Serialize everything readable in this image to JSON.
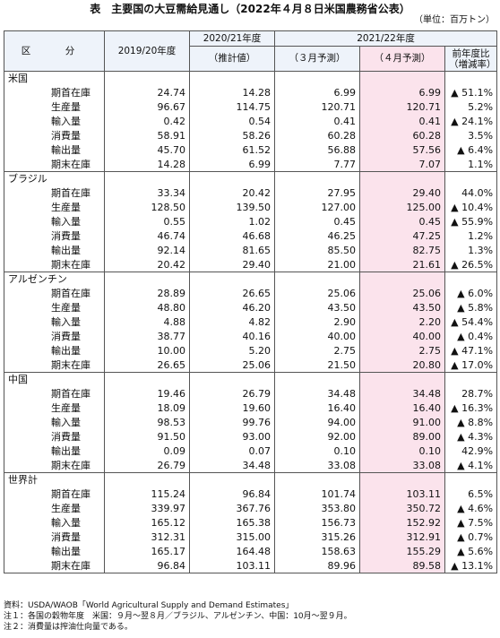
{
  "title": "表　主要国の大豆需給見通し（2022年４月８日米国農務省公表）",
  "unit": "（単位：百万トン）",
  "header": {
    "region_label": "区　分",
    "col_2019": "2019/20年度",
    "col_2020": "2020/21年度",
    "col_2020_sub": "（推計値）",
    "col_2021": "2021/22年度",
    "col_2021_mar": "（３月予測）",
    "col_2021_apr": "（４月予測）",
    "col_yoy": "前年度比",
    "col_yoy_sub": "（増減率）"
  },
  "groups": [
    {
      "name": "米国",
      "rows": [
        {
          "item": "期首在庫",
          "v2019": "24.74",
          "v2020": "14.28",
          "mar": "6.99",
          "apr": "6.99",
          "yoy": "▲ 51.1%"
        },
        {
          "item": "生産量",
          "v2019": "96.67",
          "v2020": "114.75",
          "mar": "120.71",
          "apr": "120.71",
          "yoy": "5.2%"
        },
        {
          "item": "輸入量",
          "v2019": "0.42",
          "v2020": "0.54",
          "mar": "0.41",
          "apr": "0.41",
          "yoy": "▲ 24.1%"
        },
        {
          "item": "消費量",
          "v2019": "58.91",
          "v2020": "58.26",
          "mar": "60.28",
          "apr": "60.28",
          "yoy": "3.5%"
        },
        {
          "item": "輸出量",
          "v2019": "45.70",
          "v2020": "61.52",
          "mar": "56.88",
          "apr": "57.56",
          "yoy": "▲ 6.4%"
        },
        {
          "item": "期末在庫",
          "v2019": "14.28",
          "v2020": "6.99",
          "mar": "7.77",
          "apr": "7.07",
          "yoy": "1.1%"
        }
      ]
    },
    {
      "name": "ブラジル",
      "rows": [
        {
          "item": "期首在庫",
          "v2019": "33.34",
          "v2020": "20.42",
          "mar": "27.95",
          "apr": "29.40",
          "yoy": "44.0%"
        },
        {
          "item": "生産量",
          "v2019": "128.50",
          "v2020": "139.50",
          "mar": "127.00",
          "apr": "125.00",
          "yoy": "▲ 10.4%"
        },
        {
          "item": "輸入量",
          "v2019": "0.55",
          "v2020": "1.02",
          "mar": "0.45",
          "apr": "0.45",
          "yoy": "▲ 55.9%"
        },
        {
          "item": "消費量",
          "v2019": "46.74",
          "v2020": "46.68",
          "mar": "46.25",
          "apr": "47.25",
          "yoy": "1.2%"
        },
        {
          "item": "輸出量",
          "v2019": "92.14",
          "v2020": "81.65",
          "mar": "85.50",
          "apr": "82.75",
          "yoy": "1.3%"
        },
        {
          "item": "期末在庫",
          "v2019": "20.42",
          "v2020": "29.40",
          "mar": "21.00",
          "apr": "21.61",
          "yoy": "▲ 26.5%"
        }
      ]
    },
    {
      "name": "アルゼンチン",
      "rows": [
        {
          "item": "期首在庫",
          "v2019": "28.89",
          "v2020": "26.65",
          "mar": "25.06",
          "apr": "25.06",
          "yoy": "▲ 6.0%"
        },
        {
          "item": "生産量",
          "v2019": "48.80",
          "v2020": "46.20",
          "mar": "43.50",
          "apr": "43.50",
          "yoy": "▲ 5.8%"
        },
        {
          "item": "輸入量",
          "v2019": "4.88",
          "v2020": "4.82",
          "mar": "2.90",
          "apr": "2.20",
          "yoy": "▲ 54.4%"
        },
        {
          "item": "消費量",
          "v2019": "38.77",
          "v2020": "40.16",
          "mar": "40.00",
          "apr": "40.00",
          "yoy": "▲ 0.4%"
        },
        {
          "item": "輸出量",
          "v2019": "10.00",
          "v2020": "5.20",
          "mar": "2.75",
          "apr": "2.75",
          "yoy": "▲ 47.1%"
        },
        {
          "item": "期末在庫",
          "v2019": "26.65",
          "v2020": "25.06",
          "mar": "21.50",
          "apr": "20.80",
          "yoy": "▲ 17.0%"
        }
      ]
    },
    {
      "name": "中国",
      "rows": [
        {
          "item": "期首在庫",
          "v2019": "19.46",
          "v2020": "26.79",
          "mar": "34.48",
          "apr": "34.48",
          "yoy": "28.7%"
        },
        {
          "item": "生産量",
          "v2019": "18.09",
          "v2020": "19.60",
          "mar": "16.40",
          "apr": "16.40",
          "yoy": "▲ 16.3%"
        },
        {
          "item": "輸入量",
          "v2019": "98.53",
          "v2020": "99.76",
          "mar": "94.00",
          "apr": "91.00",
          "yoy": "▲ 8.8%"
        },
        {
          "item": "消費量",
          "v2019": "91.50",
          "v2020": "93.00",
          "mar": "92.00",
          "apr": "89.00",
          "yoy": "▲ 4.3%"
        },
        {
          "item": "輸出量",
          "v2019": "0.09",
          "v2020": "0.07",
          "mar": "0.10",
          "apr": "0.10",
          "yoy": "42.9%"
        },
        {
          "item": "期末在庫",
          "v2019": "26.79",
          "v2020": "34.48",
          "mar": "33.08",
          "apr": "33.08",
          "yoy": "▲ 4.1%"
        }
      ]
    },
    {
      "name": "世界計",
      "rows": [
        {
          "item": "期首在庫",
          "v2019": "115.24",
          "v2020": "96.84",
          "mar": "101.74",
          "apr": "103.11",
          "yoy": "6.5%"
        },
        {
          "item": "生産量",
          "v2019": "339.97",
          "v2020": "367.76",
          "mar": "353.80",
          "apr": "350.72",
          "yoy": "▲ 4.6%"
        },
        {
          "item": "輸入量",
          "v2019": "165.12",
          "v2020": "165.38",
          "mar": "156.73",
          "apr": "152.92",
          "yoy": "▲ 7.5%"
        },
        {
          "item": "消費量",
          "v2019": "312.31",
          "v2020": "315.00",
          "mar": "315.26",
          "apr": "312.91",
          "yoy": "▲ 0.7%"
        },
        {
          "item": "輸出量",
          "v2019": "165.17",
          "v2020": "164.48",
          "mar": "158.63",
          "apr": "155.29",
          "yoy": "▲ 5.6%"
        },
        {
          "item": "期末在庫",
          "v2019": "96.84",
          "v2020": "103.11",
          "mar": "89.96",
          "apr": "89.58",
          "yoy": "▲ 13.1%"
        }
      ]
    }
  ],
  "notes": [
    "資料：USDA/WAOB「World Agricultural Supply and Demand Estimates」",
    "注１：各国の穀物年度　米国：９月～翌８月／ブラジル、アルゼンチン、中国：10月～翌９月。",
    "注２：消費量は搾油仕向量である。"
  ],
  "colors": {
    "pink_column": "#fbe3ec",
    "header_bg": "#eef3fa"
  }
}
